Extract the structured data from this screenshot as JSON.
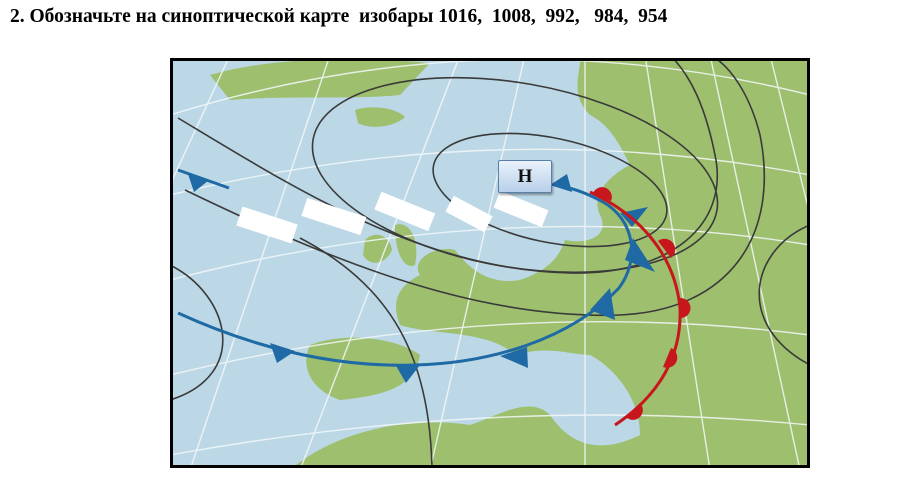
{
  "task": {
    "title": "2. Обозначьте на синоптической карте  изобары 1016,  1008,  992,   984,  954"
  },
  "map": {
    "pressure_label": "Н",
    "colors": {
      "sea": "#bcd8e6",
      "land": "#9dbf6e",
      "cold_front": "#1f6aa5",
      "warm_front": "#c8161d",
      "isobar": "#3a3a3a"
    }
  }
}
